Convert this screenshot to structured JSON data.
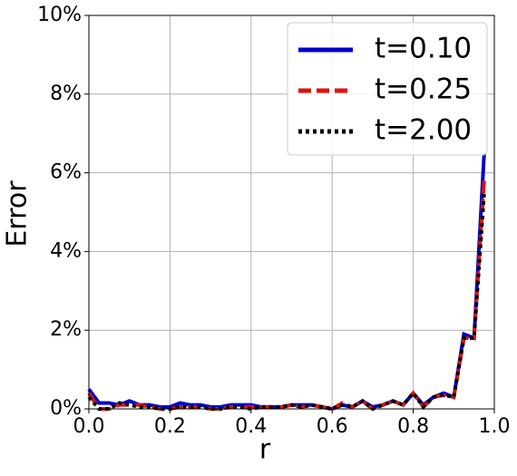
{
  "chart_data": {
    "type": "line",
    "xlabel": "r",
    "ylabel": "Error",
    "x": [
      0,
      0.025,
      0.05,
      0.075,
      0.1,
      0.125,
      0.15,
      0.175,
      0.2,
      0.225,
      0.25,
      0.275,
      0.3,
      0.325,
      0.35,
      0.375,
      0.4,
      0.425,
      0.45,
      0.475,
      0.5,
      0.525,
      0.55,
      0.575,
      0.6,
      0.625,
      0.65,
      0.675,
      0.7,
      0.725,
      0.75,
      0.775,
      0.8,
      0.825,
      0.85,
      0.875,
      0.9,
      0.925,
      0.95,
      0.975
    ],
    "series": [
      {
        "name": "t=0.10",
        "color": "#0000cc",
        "style": "solid",
        "values": [
          0.5,
          0.15,
          0.15,
          0.1,
          0.2,
          0.1,
          0.1,
          0.05,
          0.05,
          0.15,
          0.1,
          0.1,
          0.05,
          0.05,
          0.1,
          0.1,
          0.1,
          0.05,
          0.05,
          0.05,
          0.1,
          0.1,
          0.1,
          0.05,
          0.0,
          0.1,
          0.05,
          0.2,
          0.05,
          0.1,
          0.2,
          0.1,
          0.4,
          0.1,
          0.3,
          0.4,
          0.3,
          1.9,
          1.8,
          6.5
        ]
      },
      {
        "name": "t=0.25",
        "color": "#dd1111",
        "style": "dashed",
        "values": [
          0.4,
          0.0,
          0.0,
          0.1,
          0.1,
          0.1,
          0.05,
          0.0,
          0.0,
          0.05,
          0.05,
          0.05,
          0.0,
          0.0,
          0.05,
          0.05,
          0.05,
          0.05,
          0.05,
          0.05,
          0.1,
          0.05,
          0.1,
          0.05,
          0.0,
          0.15,
          0.05,
          0.2,
          0.0,
          0.1,
          0.2,
          0.1,
          0.4,
          0.05,
          0.3,
          0.35,
          0.3,
          1.8,
          1.8,
          5.8
        ]
      },
      {
        "name": "t=2.00",
        "color": "#000000",
        "style": "dotted",
        "values": [
          0.3,
          0.0,
          0.0,
          0.15,
          0.1,
          0.05,
          0.05,
          0.0,
          0.0,
          0.05,
          0.05,
          0.05,
          0.0,
          0.0,
          0.05,
          0.05,
          0.0,
          0.05,
          0.05,
          0.05,
          0.1,
          0.05,
          0.1,
          0.05,
          0.0,
          0.1,
          0.05,
          0.2,
          0.0,
          0.1,
          0.2,
          0.1,
          0.4,
          0.05,
          0.3,
          0.35,
          0.3,
          1.8,
          1.8,
          5.5
        ]
      }
    ],
    "xlim": [
      0,
      1
    ],
    "xticks": [
      {
        "value": 0,
        "label": "0.0"
      },
      0.2,
      0.4,
      0.6,
      0.8,
      {
        "value": 1,
        "label": "1.0"
      }
    ],
    "ylim": [
      0,
      10
    ],
    "yticks": [
      {
        "value": 0,
        "label": "0%"
      },
      {
        "value": 2,
        "label": "2%"
      },
      {
        "value": 4,
        "label": "4%"
      },
      {
        "value": 6,
        "label": "6%"
      },
      {
        "value": 8,
        "label": "8%"
      },
      {
        "value": 10,
        "label": "10%"
      }
    ],
    "grid": true,
    "legend": "upper right"
  }
}
